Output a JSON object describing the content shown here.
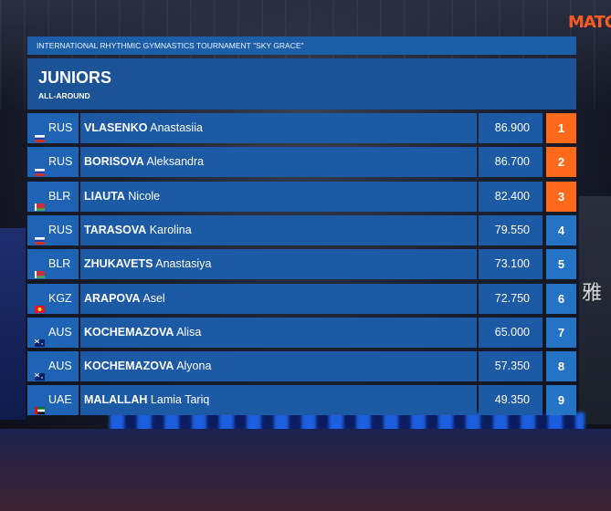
{
  "broadcast": {
    "logo_text": "MATCH",
    "background_sign": "雅"
  },
  "tournament": {
    "name": "INTERNATIONAL RHYTHMIC GYMNASTICS TOURNAMENT \"SKY GRACE\""
  },
  "category": {
    "title": "JUNIORS",
    "subtitle": "ALL-AROUND"
  },
  "colors": {
    "panel": "#1c5aa6",
    "rank_medal": "#ff6a1a",
    "rank_default": "#2573c4",
    "logo": "#ff5a1f"
  },
  "results": [
    {
      "nation": "RUS",
      "flag": "russia-flag",
      "surname": "VLASENKO",
      "given": "Anastasiia",
      "score": "86.900",
      "rank": "1"
    },
    {
      "nation": "RUS",
      "flag": "russia-flag",
      "surname": "BORISOVA",
      "given": "Aleksandra",
      "score": "86.700",
      "rank": "2"
    },
    {
      "nation": "BLR",
      "flag": "belarus-flag",
      "surname": "LIAUTA",
      "given": "Nicole",
      "score": "82.400",
      "rank": "3"
    },
    {
      "nation": "RUS",
      "flag": "russia-flag",
      "surname": "TARASOVA",
      "given": "Karolina",
      "score": "79.550",
      "rank": "4"
    },
    {
      "nation": "BLR",
      "flag": "belarus-flag",
      "surname": "ZHUKAVETS",
      "given": "Anastasiya",
      "score": "73.100",
      "rank": "5"
    },
    {
      "nation": "KGZ",
      "flag": "kyrgyzstan-flag",
      "surname": "ARAPOVA",
      "given": "Asel",
      "score": "72.750",
      "rank": "6"
    },
    {
      "nation": "AUS",
      "flag": "australia-flag",
      "surname": "KOCHEMAZOVA",
      "given": "Alisa",
      "score": "65.000",
      "rank": "7"
    },
    {
      "nation": "AUS",
      "flag": "australia-flag",
      "surname": "KOCHEMAZOVA",
      "given": "Alyona",
      "score": "57.350",
      "rank": "8"
    },
    {
      "nation": "UAE",
      "flag": "uae-flag",
      "surname": "MALALLAH",
      "given": "Lamia Tariq",
      "score": "49.350",
      "rank": "9"
    }
  ]
}
